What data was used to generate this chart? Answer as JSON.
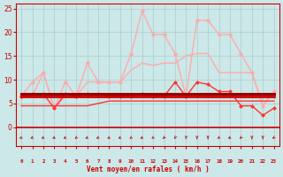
{
  "x": [
    0,
    1,
    2,
    3,
    4,
    5,
    6,
    7,
    8,
    9,
    10,
    11,
    12,
    13,
    14,
    15,
    16,
    17,
    18,
    19,
    20,
    21,
    22,
    23
  ],
  "xlabel": "Vent moyen/en rafales ( km/h )",
  "ylim": [
    0,
    26
  ],
  "yticks": [
    0,
    5,
    10,
    15,
    20,
    25
  ],
  "xlim": [
    -0.5,
    23.5
  ],
  "bg_color": "#cce8e8",
  "grid_color": "#aacccc",
  "axis_color": "#cc0000",
  "lines": [
    {
      "y": [
        6.5,
        9.5,
        11.5,
        4.0,
        9.5,
        6.5,
        13.5,
        9.5,
        9.5,
        9.5,
        15.5,
        24.5,
        19.5,
        19.5,
        15.5,
        6.5,
        22.5,
        22.5,
        19.5,
        19.5,
        15.5,
        11.5,
        4.5,
        7.5
      ],
      "color": "#ffaaaa",
      "lw": 1.0,
      "marker": "o",
      "ms": 2.5,
      "zorder": 3
    },
    {
      "y": [
        6.5,
        6.5,
        11.5,
        4.0,
        6.5,
        6.5,
        9.5,
        9.5,
        9.5,
        9.5,
        12.0,
        13.5,
        13.0,
        13.5,
        13.5,
        15.0,
        15.5,
        15.5,
        11.5,
        11.5,
        11.5,
        11.5,
        4.5,
        7.5
      ],
      "color": "#ffaaaa",
      "lw": 1.0,
      "marker": null,
      "ms": 0,
      "zorder": 3
    },
    {
      "y": [
        7.0,
        7.0,
        7.0,
        7.0,
        7.0,
        7.0,
        7.0,
        7.0,
        7.0,
        7.0,
        7.0,
        7.0,
        7.0,
        7.0,
        7.0,
        7.0,
        7.0,
        7.0,
        7.0,
        7.0,
        7.0,
        7.0,
        7.0,
        7.0
      ],
      "color": "#990000",
      "lw": 2.2,
      "marker": null,
      "ms": 0,
      "zorder": 5
    },
    {
      "y": [
        6.5,
        7.0,
        7.0,
        4.0,
        7.0,
        6.5,
        7.0,
        7.0,
        6.5,
        6.5,
        6.5,
        7.0,
        6.5,
        6.5,
        9.5,
        6.5,
        9.5,
        9.0,
        7.5,
        7.5,
        4.5,
        4.5,
        2.5,
        4.0
      ],
      "color": "#ff3333",
      "lw": 1.0,
      "marker": "D",
      "ms": 2.0,
      "zorder": 4
    },
    {
      "y": [
        4.5,
        4.5,
        4.5,
        4.5,
        4.5,
        4.5,
        4.5,
        5.0,
        5.5,
        5.5,
        5.5,
        5.5,
        5.5,
        5.5,
        5.5,
        5.5,
        5.5,
        5.5,
        5.5,
        5.5,
        5.5,
        5.5,
        5.5,
        5.5
      ],
      "color": "#ff3333",
      "lw": 1.0,
      "marker": null,
      "ms": 0,
      "zorder": 3
    },
    {
      "y": [
        6.5,
        6.5,
        6.5,
        6.5,
        6.5,
        6.5,
        6.5,
        6.5,
        6.5,
        6.5,
        6.5,
        6.5,
        6.5,
        6.5,
        6.5,
        6.5,
        6.5,
        6.5,
        6.5,
        6.5,
        6.5,
        6.5,
        6.5,
        6.5
      ],
      "color": "#cc0000",
      "lw": 2.0,
      "marker": null,
      "ms": 0,
      "zorder": 4
    }
  ],
  "arrow_angles_deg": [
    225,
    225,
    225,
    225,
    225,
    210,
    225,
    225,
    225,
    225,
    215,
    225,
    215,
    205,
    195,
    185,
    180,
    180,
    215,
    225,
    205,
    180,
    180,
    210
  ],
  "arrow_color": "#cc2222",
  "hline_color": "#cc0000",
  "hline_lw": 1.2
}
